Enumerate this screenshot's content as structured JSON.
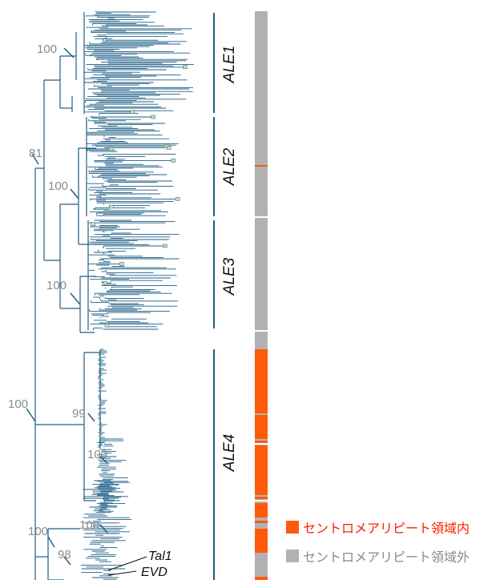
{
  "colors": {
    "branch": "#1f5f86",
    "node": "#9fc1d6",
    "inside": "#ff5a0a",
    "outside": "#b2b2b2",
    "bootstrap": "#8a8a8a"
  },
  "bootstrap_labels": [
    "100",
    "81",
    "100",
    "100",
    "100",
    "99",
    "100",
    "100",
    "100",
    "98"
  ],
  "clades": [
    "ALE1",
    "ALE2",
    "ALE3",
    "ALE4"
  ],
  "tip_labels": [
    "Tal1",
    "EVD"
  ],
  "legend": [
    {
      "label": "セントロメアリピート領域内",
      "color": "#ff5a0a"
    },
    {
      "label": "セントロメアリピート領域外",
      "color": "#b2b2b2"
    }
  ]
}
